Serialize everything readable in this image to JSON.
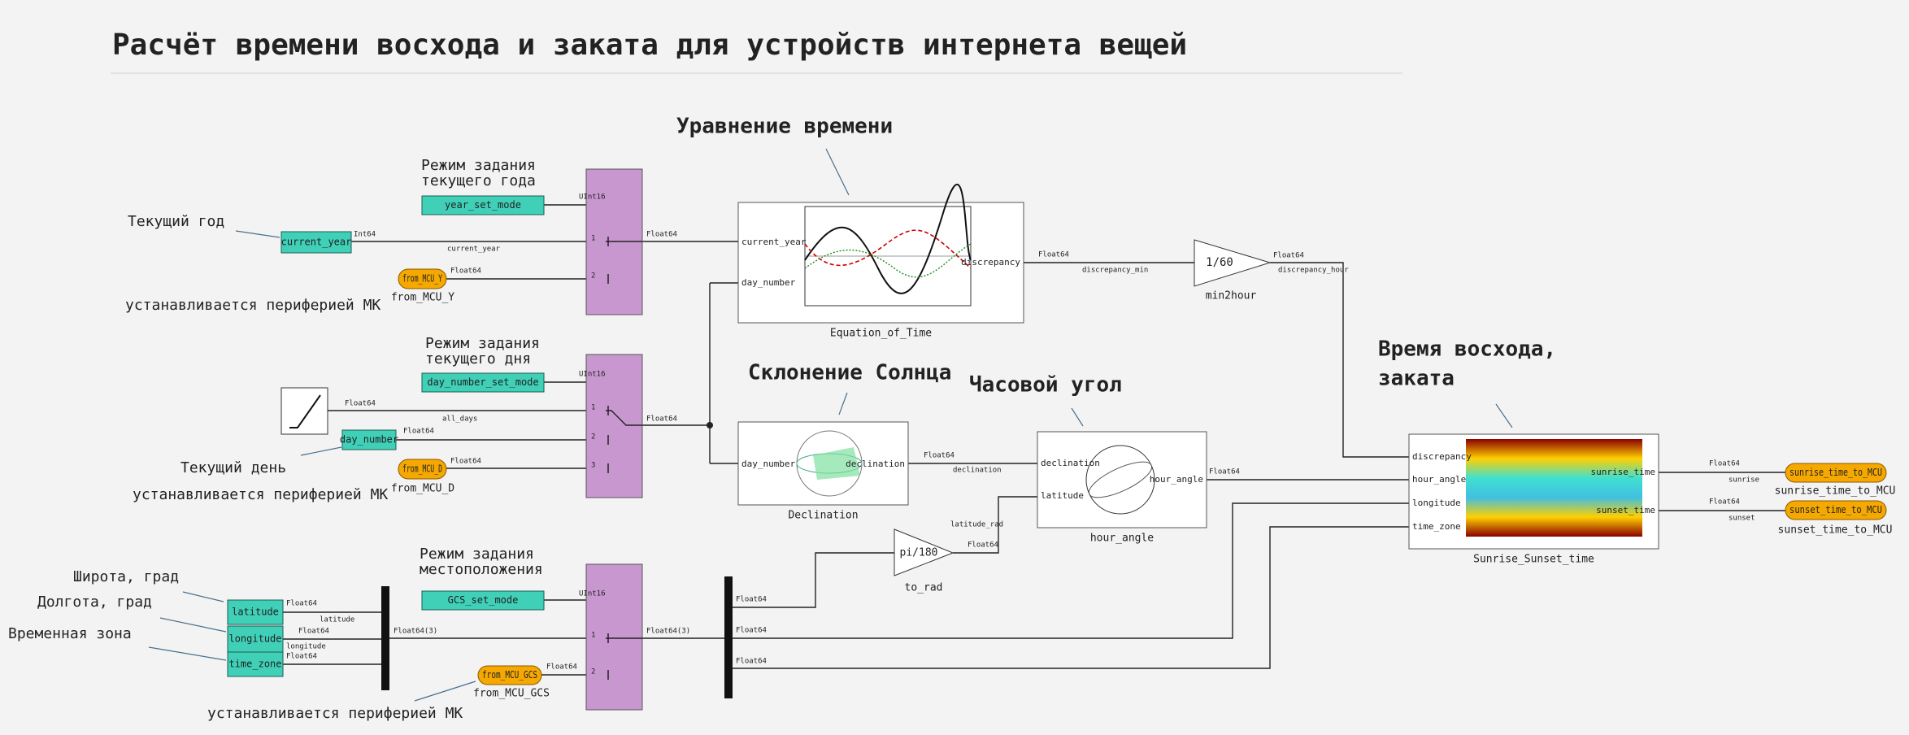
{
  "title": "Расчёт времени восхода и заката для устройств интернета вещей",
  "headings": [
    [
      "Уравнение времени"
    ],
    [
      "Склонение Солнца"
    ],
    [
      "Часовой угол"
    ],
    [
      "Время восхода,",
      "заката"
    ]
  ],
  "comments": [
    [
      "Режим задания",
      "текущего года"
    ],
    [
      "Текущий год"
    ],
    [
      "устанавливается периферией МК"
    ],
    [
      "Режим задания",
      "текущего дня"
    ],
    [
      "Текущий день"
    ],
    [
      "устанавливается периферией МК"
    ],
    [
      "Широта, град"
    ],
    [
      "Долгота, град"
    ],
    [
      "Временная зона"
    ],
    [
      "Режим задания",
      "местоположения"
    ],
    [
      "устанавливается периферией МК"
    ]
  ],
  "blocks": [
    {
      "name": "year_set_mode"
    },
    {
      "name": "current_year"
    },
    {
      "name": "from_MCU_Y"
    },
    {
      "name": "day_number_set_mode"
    },
    {
      "name": "day_number"
    },
    {
      "name": "from_MCU_D"
    },
    {
      "name": "latitude"
    },
    {
      "name": "longitude"
    },
    {
      "name": "time_zone"
    },
    {
      "name": "GCS_set_mode"
    },
    {
      "name": "from_MCU_GCS"
    },
    {
      "name": "Equation_of_Time",
      "inputs": [
        "current_year",
        "day_number"
      ],
      "outputs": [
        "discrepancy"
      ]
    },
    {
      "name": "Declination",
      "inputs": [
        "day_number"
      ],
      "outputs": [
        "declination"
      ]
    },
    {
      "name": "hour_angle",
      "inputs": [
        "declination",
        "latitude"
      ],
      "outputs": [
        "hour_angle"
      ]
    },
    {
      "name": "Sunrise_Sunset_time",
      "inputs": [
        "discrepancy",
        "hour_angle",
        "longitude",
        "time_zone"
      ],
      "outputs": [
        "sunrise_time",
        "sunset_time"
      ]
    },
    {
      "name": "min2hour",
      "expression": "1/60"
    },
    {
      "name": "to_rad",
      "expression": "pi/180"
    },
    {
      "name": "sunrise_time_to_MCU"
    },
    {
      "name": "sunset_time_to_MCU"
    }
  ],
  "signal_labels": [
    "UInt16",
    "Int64",
    "current_year",
    "Float64",
    "Float64",
    "UInt16",
    "Float64",
    "all_days",
    "Float64",
    "Float64",
    "Float64",
    "Float64",
    "discrepancy_min",
    "Float64",
    "discrepancy_hour",
    "Float64",
    "declination",
    "Float64",
    "latitude_rad",
    "Float64",
    "Float64",
    "sunrise",
    "Float64",
    "sunset",
    "Float64",
    "latitude",
    "Float64",
    "longitude",
    "Float64",
    "Float64(3)",
    "UInt16",
    "Float64",
    "Float64(3)",
    "Float64",
    "Float64",
    "Float64"
  ],
  "port_numbers": [
    "1",
    "2",
    "3"
  ]
}
